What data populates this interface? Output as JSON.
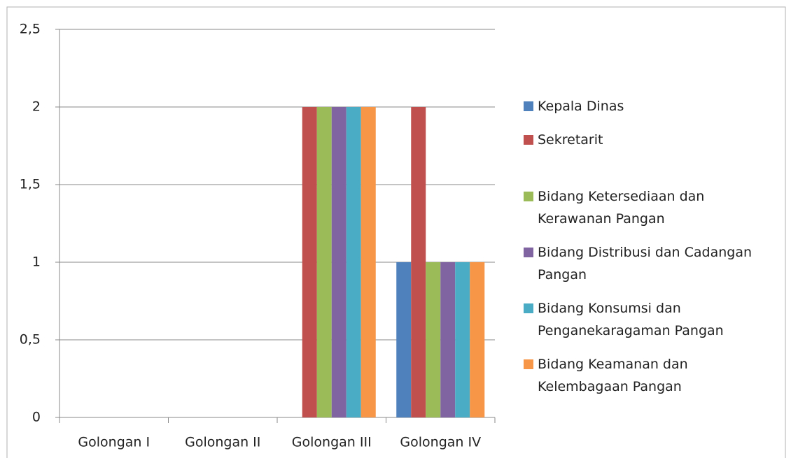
{
  "chart_data": {
    "type": "bar",
    "categories": [
      "Golongan I",
      "Golongan II",
      "Golongan III",
      "Golongan IV"
    ],
    "series": [
      {
        "name": "Kepala Dinas",
        "color": "#4f81bd",
        "values": [
          0,
          0,
          0,
          1
        ]
      },
      {
        "name": "Sekretarit",
        "color": "#c0504d",
        "values": [
          0,
          0,
          2,
          2
        ]
      },
      {
        "name": "Bidang Ketersediaan dan Kerawanan Pangan",
        "color": "#9bbb59",
        "values": [
          0,
          0,
          2,
          1
        ]
      },
      {
        "name": "Bidang Distribusi dan Cadangan Pangan",
        "color": "#8064a2",
        "values": [
          0,
          0,
          2,
          1
        ]
      },
      {
        "name": "Bidang Konsumsi dan Penganekaragaman Pangan",
        "color": "#4bacc6",
        "values": [
          0,
          0,
          2,
          1
        ]
      },
      {
        "name": "Bidang Keamanan dan Kelembagaan Pangan",
        "color": "#f79646",
        "values": [
          0,
          0,
          2,
          1
        ]
      }
    ],
    "ylim": [
      0,
      2.5
    ],
    "yticks": [
      0,
      {
        "value": 0.5,
        "label": "0,5"
      },
      1,
      {
        "value": 1.5,
        "label": "1,5"
      },
      2,
      {
        "value": 2.5,
        "label": "2,5"
      }
    ],
    "grid": true,
    "legend": "right"
  }
}
